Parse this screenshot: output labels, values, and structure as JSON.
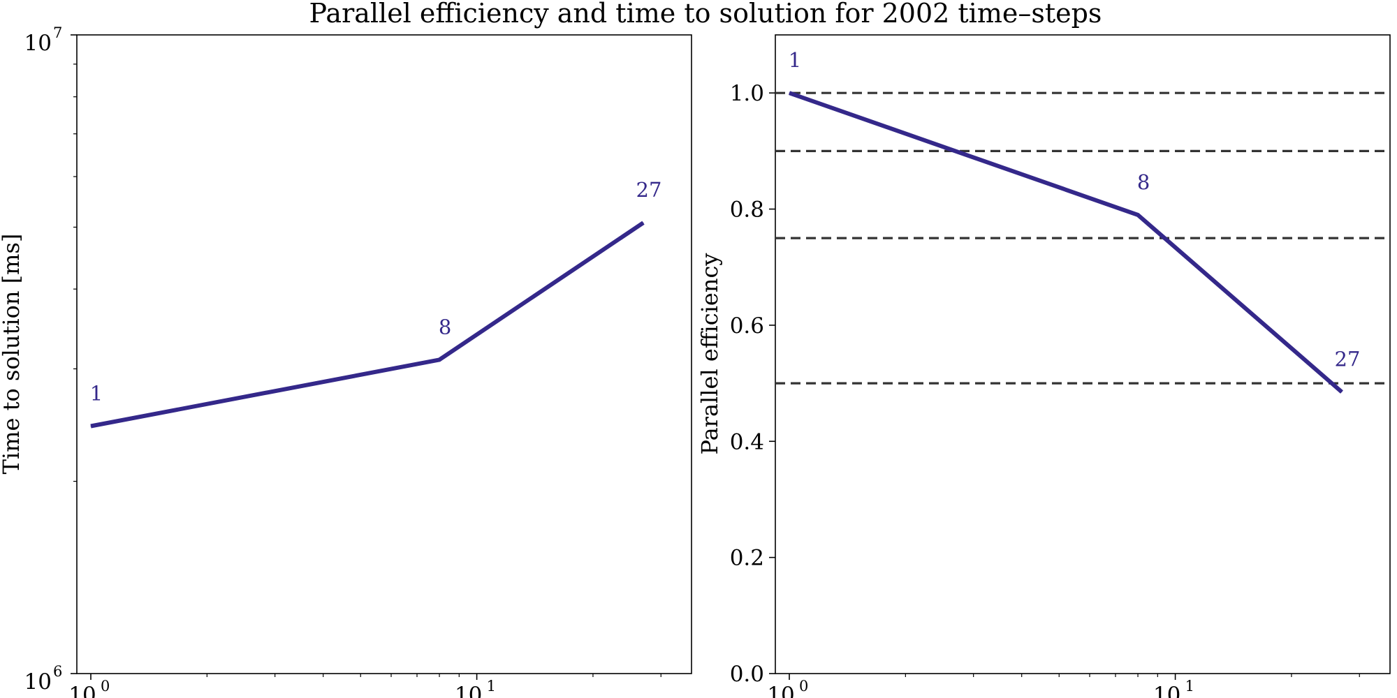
{
  "title": "Parallel efficiency and time to solution for 2002 time–steps",
  "colors": {
    "series": "#34288a",
    "reference": "#333333",
    "axes": "#000000"
  },
  "chart_data": [
    {
      "type": "line",
      "xscale": "log",
      "yscale": "log",
      "xlim": [
        0.92,
        36
      ],
      "ylim": [
        1000000,
        10000000
      ],
      "x_ticks": [
        {
          "base": "10",
          "exp": "0",
          "value": 1
        },
        {
          "base": "10",
          "exp": "1",
          "value": 10
        }
      ],
      "y_ticks": [
        {
          "base": "10",
          "exp": "6",
          "value": 1000000
        },
        {
          "base": "10",
          "exp": "7",
          "value": 10000000
        }
      ],
      "xlabel": "",
      "ylabel": "Time to solution [ms]",
      "series": [
        {
          "x": [
            1,
            8,
            27
          ],
          "y": [
            2440000,
            3100000,
            5080000
          ],
          "point_labels": [
            "1",
            "8",
            "27"
          ]
        }
      ]
    },
    {
      "type": "line",
      "xscale": "log",
      "yscale": "linear",
      "xlim": [
        0.92,
        36
      ],
      "ylim": [
        0.0,
        1.1
      ],
      "x_ticks": [
        {
          "base": "10",
          "exp": "0",
          "value": 1
        },
        {
          "base": "10",
          "exp": "1",
          "value": 10
        }
      ],
      "y_ticks": [
        "0.0",
        "0.2",
        "0.4",
        "0.6",
        "0.8",
        "1.0"
      ],
      "xlabel": "",
      "ylabel": "Parallel efficiency",
      "reference_lines": [
        1.0,
        0.9,
        0.75,
        0.5
      ],
      "series": [
        {
          "x": [
            1,
            8,
            27
          ],
          "y": [
            1.0,
            0.79,
            0.485
          ],
          "point_labels": [
            "1",
            "8",
            "27"
          ]
        }
      ]
    }
  ]
}
